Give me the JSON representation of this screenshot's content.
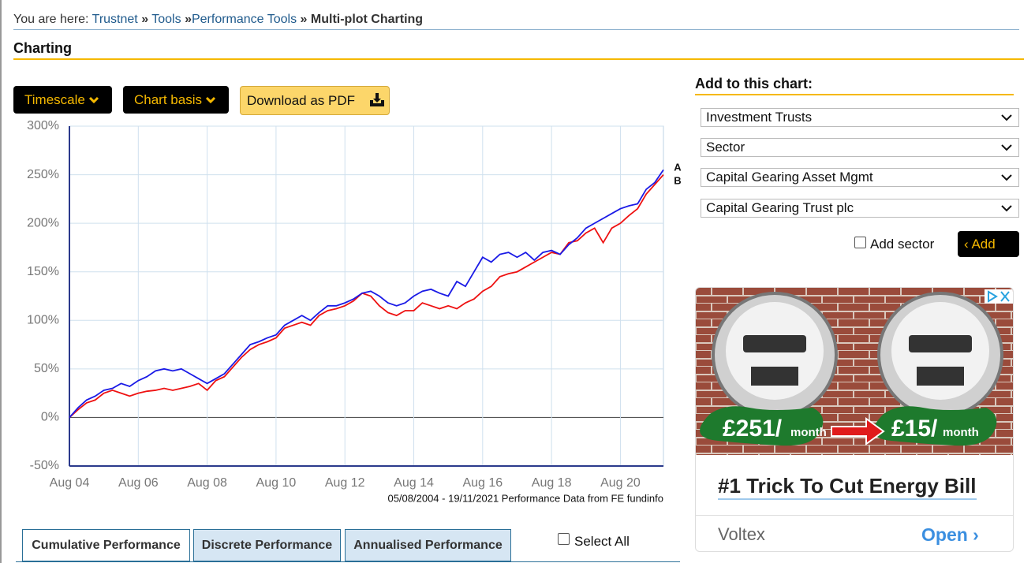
{
  "breadcrumb": {
    "prefix": "You are here:",
    "links": [
      "Trustnet",
      "Tools",
      "Performance Tools"
    ],
    "separator": "»",
    "current": "Multi-plot Charting"
  },
  "heading": "Charting",
  "toolbar": {
    "timescale": "Timescale",
    "chart_basis": "Chart basis",
    "download": "Download as PDF"
  },
  "chart_data": {
    "type": "line",
    "categories": [
      "Aug 04",
      null,
      null,
      null,
      null,
      null,
      null,
      null,
      "Aug 06",
      null,
      null,
      null,
      null,
      null,
      null,
      null,
      "Aug 08",
      null,
      null,
      null,
      null,
      null,
      null,
      null,
      "Aug 10",
      null,
      null,
      null,
      null,
      null,
      null,
      null,
      "Aug 12",
      null,
      null,
      null,
      null,
      null,
      null,
      null,
      "Aug 14",
      null,
      null,
      null,
      null,
      null,
      null,
      null,
      "Aug 16",
      null,
      null,
      null,
      null,
      null,
      null,
      null,
      "Aug 18",
      null,
      null,
      null,
      null,
      null,
      null,
      null,
      "Aug 20",
      null,
      null,
      null,
      null,
      null
    ],
    "series": [
      {
        "name": "A",
        "color": "#1a1ae6",
        "values": [
          0,
          10,
          18,
          22,
          28,
          30,
          35,
          32,
          38,
          42,
          48,
          50,
          48,
          50,
          45,
          40,
          35,
          40,
          45,
          55,
          65,
          75,
          78,
          82,
          85,
          95,
          100,
          105,
          100,
          108,
          115,
          115,
          118,
          122,
          128,
          130,
          125,
          118,
          115,
          118,
          125,
          130,
          132,
          128,
          125,
          140,
          135,
          150,
          165,
          160,
          168,
          170,
          165,
          170,
          162,
          170,
          172,
          168,
          178,
          185,
          195,
          200,
          205,
          210,
          215,
          218,
          220,
          235,
          242,
          255
        ]
      },
      {
        "name": "B",
        "color": "#ee1111",
        "values": [
          0,
          8,
          15,
          18,
          25,
          28,
          25,
          22,
          25,
          27,
          28,
          30,
          28,
          30,
          32,
          35,
          28,
          38,
          42,
          52,
          62,
          70,
          75,
          78,
          82,
          92,
          95,
          98,
          95,
          105,
          110,
          112,
          115,
          120,
          128,
          125,
          115,
          108,
          105,
          110,
          110,
          118,
          115,
          112,
          115,
          112,
          118,
          122,
          130,
          135,
          145,
          148,
          150,
          155,
          160,
          165,
          170,
          168,
          180,
          182,
          190,
          195,
          180,
          195,
          200,
          208,
          215,
          230,
          240,
          250
        ]
      }
    ],
    "ylim": [
      -50,
      300
    ],
    "yticks": [
      {
        "value": -50,
        "label": "-50%"
      },
      {
        "value": 0,
        "label": "0%"
      },
      {
        "value": 50,
        "label": "50%"
      },
      {
        "value": 100,
        "label": "100%"
      },
      {
        "value": 150,
        "label": "150%"
      },
      {
        "value": 200,
        "label": "200%"
      },
      {
        "value": 250,
        "label": "250%"
      },
      {
        "value": 300,
        "label": "300%"
      }
    ],
    "grid": true,
    "caption": "05/08/2004 - 19/11/2021 Performance Data from FE fundinfo"
  },
  "tabs": [
    "Cumulative Performance",
    "Discrete Performance",
    "Annualised Performance"
  ],
  "select_all": "Select All",
  "panel": {
    "title": "Add to this chart:",
    "selects": [
      "Investment Trusts",
      "Sector",
      "Capital Gearing Asset Mgmt",
      "Capital Gearing Trust plc"
    ],
    "add_sector": "Add sector",
    "add": "Add"
  },
  "ad": {
    "price_before": "£251/",
    "unit_before": "month",
    "price_after": "£15/",
    "unit_after": "month",
    "headline": "#1 Trick To Cut Energy Bill",
    "brand": "Voltex",
    "cta": "Open"
  }
}
